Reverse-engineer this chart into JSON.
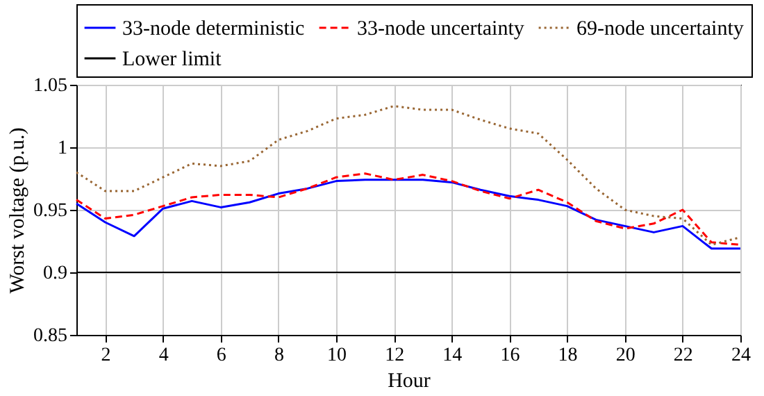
{
  "chart_data": {
    "type": "line",
    "xlabel": "Hour",
    "ylabel": "Worst voltage (p.u.)",
    "x": [
      1,
      2,
      3,
      4,
      5,
      6,
      7,
      8,
      9,
      10,
      11,
      12,
      13,
      14,
      15,
      16,
      17,
      18,
      19,
      20,
      21,
      22,
      23,
      24
    ],
    "series": [
      {
        "name": "33-node deterministic",
        "color": "#0000ff",
        "line_style": "solid",
        "values": [
          0.955,
          0.94,
          0.929,
          0.951,
          0.957,
          0.952,
          0.956,
          0.963,
          0.967,
          0.973,
          0.974,
          0.974,
          0.974,
          0.972,
          0.966,
          0.961,
          0.958,
          0.953,
          0.942,
          0.937,
          0.932,
          0.937,
          0.919,
          0.919
        ]
      },
      {
        "name": "33-node uncertainty",
        "color": "#ff0000",
        "line_style": "dashed",
        "values": [
          0.958,
          0.943,
          0.946,
          0.953,
          0.96,
          0.962,
          0.962,
          0.96,
          0.967,
          0.976,
          0.979,
          0.974,
          0.978,
          0.973,
          0.965,
          0.959,
          0.966,
          0.956,
          0.941,
          0.935,
          0.939,
          0.95,
          0.924,
          0.922
        ]
      },
      {
        "name": "69-node uncertainty",
        "color": "#996633",
        "line_style": "dotted",
        "values": [
          0.98,
          0.965,
          0.965,
          0.976,
          0.987,
          0.985,
          0.989,
          1.006,
          1.013,
          1.023,
          1.026,
          1.033,
          1.03,
          1.03,
          1.022,
          1.015,
          1.011,
          0.99,
          0.967,
          0.95,
          0.945,
          0.943,
          0.922,
          0.928
        ]
      }
    ],
    "ref_lines": [
      {
        "axis": "y",
        "value": 0.9,
        "label": "Lower limit",
        "color": "#000000",
        "line_style": "solid"
      }
    ],
    "xlim": [
      1,
      24
    ],
    "xticks": [
      2,
      4,
      6,
      8,
      10,
      12,
      14,
      16,
      18,
      20,
      22,
      24
    ],
    "ylim": [
      0.85,
      1.05
    ],
    "yticks": [
      0.85,
      0.9,
      0.95,
      1,
      1.05
    ],
    "grid": true,
    "legend": "top",
    "marker": "none"
  }
}
